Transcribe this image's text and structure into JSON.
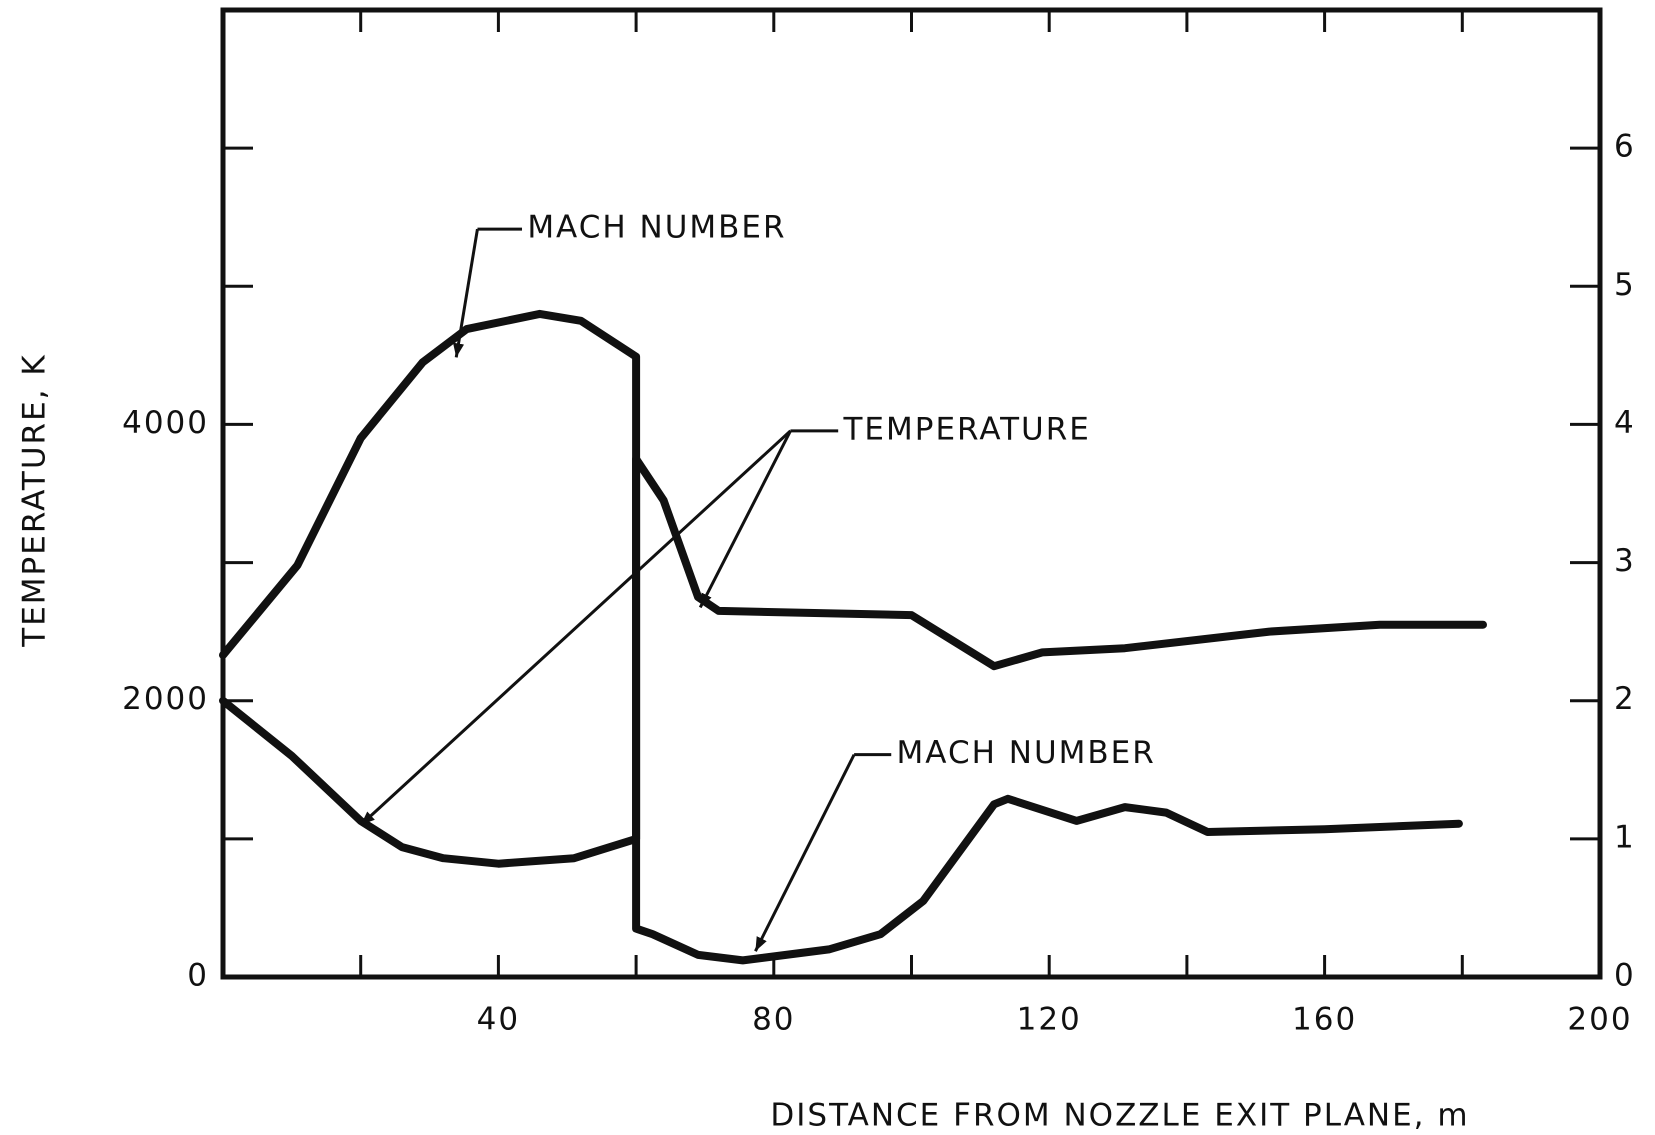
{
  "chart_data": {
    "type": "line",
    "xlabel": "DISTANCE FROM NOZZLE EXIT PLANE, m",
    "ylabel": "TEMPERATURE, K",
    "xlim": [
      0,
      200
    ],
    "xticks": [
      40,
      80,
      120,
      160,
      200
    ],
    "xminor": [
      20,
      60,
      100,
      140,
      180
    ],
    "ylim": [
      0,
      7000
    ],
    "yticks": [
      0,
      2000,
      4000
    ],
    "yminor": [
      1000,
      3000,
      5000,
      6000
    ],
    "y2lim": [
      0,
      7
    ],
    "y2ticks": [
      0,
      1,
      2,
      3,
      4,
      5,
      6
    ],
    "color": "#111111",
    "series": [
      {
        "name": "TEMPERATURE",
        "x": [
          0,
          10,
          20,
          26,
          32,
          40,
          51,
          60,
          60,
          64,
          69,
          72,
          100,
          112,
          119,
          131,
          152,
          168,
          183
        ],
        "values": [
          2000,
          1600,
          1130,
          940,
          860,
          820,
          860,
          1000,
          3750,
          3450,
          2750,
          2650,
          2620,
          2250,
          2350,
          2380,
          2500,
          2550,
          2550
        ]
      },
      {
        "name": "MACH NUMBER",
        "axis": "y2",
        "x": [
          0,
          10.8,
          20,
          29,
          35.4,
          46,
          52,
          60,
          60,
          62.4,
          69,
          75.5,
          88,
          95.5,
          101.7,
          112,
          114,
          124,
          131,
          137,
          143,
          160,
          179.5
        ],
        "values": [
          2.33,
          2.98,
          3.9,
          4.45,
          4.69,
          4.8,
          4.75,
          4.49,
          0.35,
          0.31,
          0.16,
          0.12,
          0.2,
          0.31,
          0.55,
          1.25,
          1.29,
          1.13,
          1.23,
          1.19,
          1.05,
          1.07,
          1.11
        ]
      }
    ],
    "annotations": [
      "MACH NUMBER",
      "TEMPERATURE",
      "MACH NUMBER"
    ]
  }
}
